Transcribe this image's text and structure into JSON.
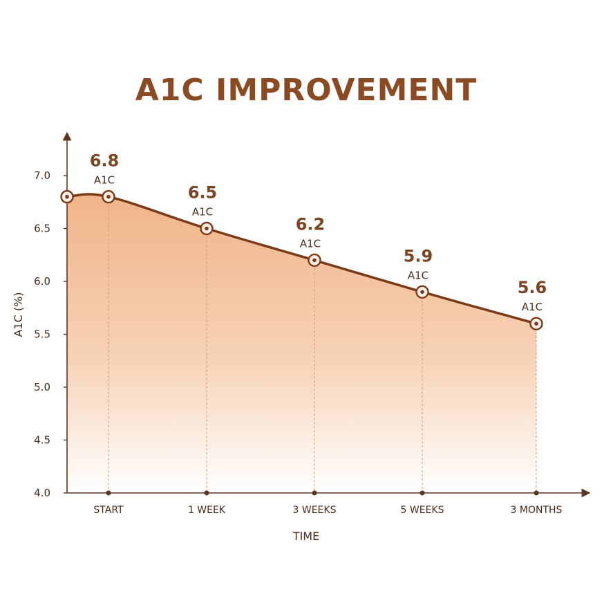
{
  "chart_data": {
    "type": "area",
    "title": "A1C IMPROVEMENT",
    "xlabel": "TIME",
    "ylabel": "A1C (%)",
    "ylim": [
      4.0,
      7.0
    ],
    "y_ticks": [
      "4.0",
      "4.5",
      "5.0",
      "5.5",
      "6.0",
      "6.5",
      "7.0"
    ],
    "categories": [
      "START",
      "1 WEEK",
      "3 WEEKS",
      "5 WEEKS",
      "3 MONTHS"
    ],
    "values": [
      6.8,
      6.5,
      6.2,
      5.9,
      5.6
    ],
    "value_labels": [
      "6.8",
      "6.5",
      "6.2",
      "5.9",
      "5.6"
    ],
    "point_unit_label": "A1C",
    "grid": false,
    "legend": "none",
    "colors": {
      "line": "#7a3a18",
      "fill_top": "#f0b48a",
      "fill_bottom": "#ffffff",
      "title": "#8a4a22",
      "axis": "#5a3520"
    }
  }
}
